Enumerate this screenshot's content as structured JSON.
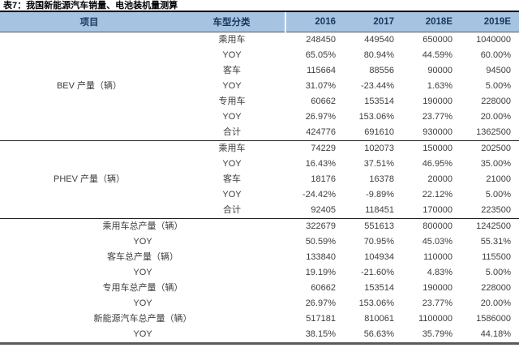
{
  "title": "表7：我国新能源汽车销量、电池装机量测算",
  "colors": {
    "header_bg": "#a6c3e2",
    "header_text": "#17375e",
    "body_text": "#3d3d3d",
    "title_rule": "#000000",
    "bottom_rule": "#5a5a5a"
  },
  "table": {
    "headers": [
      "项目",
      "车型分类",
      "2016",
      "2017",
      "2018E",
      "2019E"
    ],
    "groups": [
      {
        "item": "BEV 产量（辆）",
        "rows": [
          {
            "type": "乘用车",
            "values": [
              "248450",
              "449540",
              "650000",
              "1040000"
            ]
          },
          {
            "type": "YOY",
            "values": [
              "65.05%",
              "80.94%",
              "44.59%",
              "60.00%"
            ]
          },
          {
            "type": "客车",
            "values": [
              "115664",
              "88556",
              "90000",
              "94500"
            ]
          },
          {
            "type": "YOY",
            "values": [
              "31.07%",
              "-23.44%",
              "1.63%",
              "5.00%"
            ]
          },
          {
            "type": "专用车",
            "values": [
              "60662",
              "153514",
              "190000",
              "228000"
            ]
          },
          {
            "type": "YOY",
            "values": [
              "26.97%",
              "153.06%",
              "23.77%",
              "20.00%"
            ]
          },
          {
            "type": "合计",
            "values": [
              "424776",
              "691610",
              "930000",
              "1362500"
            ]
          }
        ]
      },
      {
        "item": "PHEV 产量（辆）",
        "rows": [
          {
            "type": "乘用车",
            "values": [
              "74229",
              "102073",
              "150000",
              "202500"
            ]
          },
          {
            "type": "YOY",
            "values": [
              "16.43%",
              "37.51%",
              "46.95%",
              "35.00%"
            ]
          },
          {
            "type": "客车",
            "values": [
              "18176",
              "16378",
              "20000",
              "21000"
            ]
          },
          {
            "type": "YOY",
            "values": [
              "-24.42%",
              "-9.89%",
              "22.12%",
              "5.00%"
            ]
          },
          {
            "type": "合计",
            "values": [
              "92405",
              "118451",
              "170000",
              "223500"
            ]
          }
        ]
      }
    ],
    "summary_rows": [
      {
        "label": "乘用车总产量（辆）",
        "values": [
          "322679",
          "551613",
          "800000",
          "1242500"
        ]
      },
      {
        "label": "YOY",
        "values": [
          "50.59%",
          "70.95%",
          "45.03%",
          "55.31%"
        ]
      },
      {
        "label": "客车总产量（辆）",
        "values": [
          "133840",
          "104934",
          "110000",
          "115500"
        ]
      },
      {
        "label": "YOY",
        "values": [
          "19.19%",
          "-21.60%",
          "4.83%",
          "5.00%"
        ]
      },
      {
        "label": "专用车总产量（辆）",
        "values": [
          "60662",
          "153514",
          "190000",
          "228000"
        ]
      },
      {
        "label": "YOY",
        "values": [
          "26.97%",
          "153.06%",
          "23.77%",
          "20.00%"
        ]
      },
      {
        "label": "新能源汽车总产量（辆）",
        "values": [
          "517181",
          "810061",
          "1100000",
          "1586000"
        ]
      },
      {
        "label": "YOY",
        "values": [
          "38.15%",
          "56.63%",
          "35.79%",
          "44.18%"
        ]
      }
    ]
  }
}
